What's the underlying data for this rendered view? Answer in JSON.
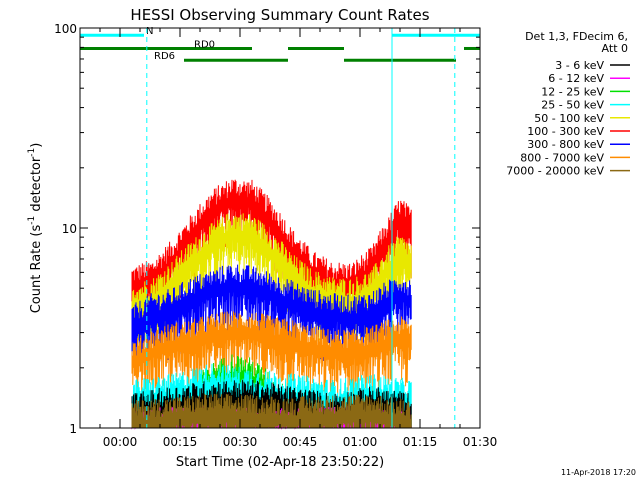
{
  "chart_data": {
    "type": "line",
    "title": "HESSI Observing Summary Count Rates",
    "xlabel": "Start Time (02-Apr-18 23:50:22)",
    "ylabel_main": "Count Rate (s",
    "ylabel_sup1": "-1",
    "ylabel_mid": " detector",
    "ylabel_sup2": "-1",
    "ylabel_end": ")",
    "y_scale": "log",
    "ylim": [
      1,
      100
    ],
    "y_ticks": [
      {
        "value": 1,
        "label": "1"
      },
      {
        "value": 10,
        "label": "10"
      },
      {
        "value": 100,
        "label": "100"
      }
    ],
    "xlim_minutes": [
      -10,
      90
    ],
    "x_ticks": [
      {
        "minutes": 0,
        "label": "00:00"
      },
      {
        "minutes": 15,
        "label": "00:15"
      },
      {
        "minutes": 30,
        "label": "00:30"
      },
      {
        "minutes": 45,
        "label": "00:45"
      },
      {
        "minutes": 60,
        "label": "01:00"
      },
      {
        "minutes": 75,
        "label": "01:15"
      },
      {
        "minutes": 90,
        "label": "01:30"
      }
    ],
    "data_range_minutes": [
      3,
      73
    ],
    "legend": {
      "header_line1": "Det 1,3, FDecim 6,",
      "header_line2": "Att 0",
      "entries": [
        {
          "label": "3 - 6 keV",
          "color": "#000000"
        },
        {
          "label": "6 - 12 keV",
          "color": "#ff00ff"
        },
        {
          "label": "12 - 25 keV",
          "color": "#00e000"
        },
        {
          "label": "25 - 50 keV",
          "color": "#00ffff"
        },
        {
          "label": "50 - 100 keV",
          "color": "#e8e800"
        },
        {
          "label": "100 - 300 keV",
          "color": "#ff0000"
        },
        {
          "label": "300 - 800 keV",
          "color": "#0000ff"
        },
        {
          "label": "800 - 7000 keV",
          "color": "#ff8c00"
        },
        {
          "label": "7000 - 20000 keV",
          "color": "#8b6914"
        }
      ]
    },
    "series": [
      {
        "name": "100 - 300 keV",
        "color": "#ff0000",
        "points": [
          [
            3,
            5.2
          ],
          [
            8,
            5.6
          ],
          [
            13,
            7.0
          ],
          [
            18,
            9.5
          ],
          [
            23,
            12.5
          ],
          [
            28,
            14.5
          ],
          [
            33,
            14.0
          ],
          [
            38,
            11.0
          ],
          [
            43,
            8.0
          ],
          [
            48,
            6.2
          ],
          [
            53,
            5.5
          ],
          [
            58,
            5.4
          ],
          [
            63,
            6.5
          ],
          [
            67,
            9.0
          ],
          [
            70,
            11.5
          ],
          [
            73,
            10.0
          ]
        ]
      },
      {
        "name": "50 - 100 keV",
        "color": "#e8e800",
        "points": [
          [
            3,
            4.3
          ],
          [
            8,
            4.5
          ],
          [
            13,
            5.5
          ],
          [
            18,
            7.0
          ],
          [
            23,
            8.5
          ],
          [
            28,
            9.8
          ],
          [
            33,
            9.5
          ],
          [
            38,
            7.8
          ],
          [
            43,
            6.0
          ],
          [
            48,
            5.0
          ],
          [
            53,
            4.6
          ],
          [
            58,
            4.5
          ],
          [
            63,
            5.0
          ],
          [
            67,
            6.5
          ],
          [
            70,
            7.5
          ],
          [
            73,
            6.8
          ]
        ]
      },
      {
        "name": "300 - 800 keV",
        "color": "#0000ff",
        "points": [
          [
            3,
            3.3
          ],
          [
            8,
            3.8
          ],
          [
            13,
            4.0
          ],
          [
            18,
            4.6
          ],
          [
            23,
            5.0
          ],
          [
            28,
            5.4
          ],
          [
            33,
            5.2
          ],
          [
            38,
            4.8
          ],
          [
            43,
            4.4
          ],
          [
            48,
            4.0
          ],
          [
            53,
            3.8
          ],
          [
            58,
            3.7
          ],
          [
            63,
            3.9
          ],
          [
            67,
            4.4
          ],
          [
            70,
            4.8
          ],
          [
            73,
            4.5
          ]
        ]
      },
      {
        "name": "800 - 7000 keV",
        "color": "#ff8c00",
        "points": [
          [
            3,
            2.2
          ],
          [
            8,
            2.5
          ],
          [
            13,
            2.7
          ],
          [
            18,
            2.8
          ],
          [
            23,
            3.0
          ],
          [
            28,
            3.1
          ],
          [
            33,
            3.1
          ],
          [
            38,
            2.9
          ],
          [
            43,
            2.8
          ],
          [
            48,
            2.6
          ],
          [
            53,
            2.5
          ],
          [
            58,
            2.5
          ],
          [
            63,
            2.6
          ],
          [
            67,
            2.8
          ],
          [
            70,
            2.9
          ],
          [
            73,
            2.8
          ]
        ]
      },
      {
        "name": "12 - 25 keV",
        "color": "#00e000",
        "points": [
          [
            3,
            1.0
          ],
          [
            13,
            1.1
          ],
          [
            18,
            1.4
          ],
          [
            23,
            1.7
          ],
          [
            28,
            1.9
          ],
          [
            33,
            1.8
          ],
          [
            38,
            1.5
          ],
          [
            43,
            1.2
          ],
          [
            48,
            1.1
          ],
          [
            58,
            1.0
          ],
          [
            68,
            1.1
          ],
          [
            73,
            1.0
          ]
        ]
      },
      {
        "name": "25 - 50 keV",
        "color": "#00ffff",
        "points": [
          [
            3,
            1.4
          ],
          [
            13,
            1.5
          ],
          [
            23,
            1.7
          ],
          [
            33,
            1.6
          ],
          [
            43,
            1.5
          ],
          [
            53,
            1.4
          ],
          [
            63,
            1.5
          ],
          [
            73,
            1.4
          ]
        ]
      },
      {
        "name": "3 - 6 keV",
        "color": "#000000",
        "points": [
          [
            3,
            1.2
          ],
          [
            13,
            1.3
          ],
          [
            23,
            1.4
          ],
          [
            33,
            1.4
          ],
          [
            43,
            1.3
          ],
          [
            53,
            1.2
          ],
          [
            63,
            1.3
          ],
          [
            73,
            1.2
          ]
        ]
      },
      {
        "name": "6 - 12 keV",
        "color": "#ff00ff",
        "points": [
          [
            3,
            1.0
          ],
          [
            23,
            1.05
          ],
          [
            43,
            1.0
          ],
          [
            63,
            1.05
          ],
          [
            73,
            1.0
          ]
        ]
      },
      {
        "name": "7000 - 20000 keV",
        "color": "#8b6914",
        "points": [
          [
            3,
            1.1
          ],
          [
            23,
            1.2
          ],
          [
            43,
            1.15
          ],
          [
            63,
            1.2
          ],
          [
            73,
            1.1
          ]
        ]
      }
    ],
    "annotations": [
      {
        "label": "N",
        "color": "#00ffff",
        "start_minutes": -10,
        "end_minutes": 6,
        "level": 92
      },
      {
        "label": "",
        "color": "#00ffff",
        "start_minutes": 68,
        "end_minutes": 90,
        "level": 92
      },
      {
        "label": "RD0",
        "color": "#008000",
        "start_minutes": -10,
        "end_minutes": 33,
        "level": 79
      },
      {
        "label": "",
        "color": "#008000",
        "start_minutes": 42,
        "end_minutes": 56,
        "level": 79
      },
      {
        "label": "",
        "color": "#008000",
        "start_minutes": 86,
        "end_minutes": 90,
        "level": 79
      },
      {
        "label": "RD6",
        "color": "#008000",
        "start_minutes": 16,
        "end_minutes": 42,
        "level": 69
      },
      {
        "label": "",
        "color": "#008000",
        "start_minutes": 56,
        "end_minutes": 84,
        "level": 69
      }
    ],
    "vlines": [
      {
        "minutes": 6.7,
        "color": "#00ffff",
        "style": "dashed"
      },
      {
        "minutes": 68,
        "color": "#00ffff",
        "style": "solid"
      },
      {
        "minutes": 83.7,
        "color": "#00ffff",
        "style": "dashed"
      },
      {
        "minutes": -10,
        "color": "#00ffff",
        "style": "solid"
      }
    ]
  },
  "footer": {
    "date_stamp": "11-Apr-2018 17:20"
  }
}
